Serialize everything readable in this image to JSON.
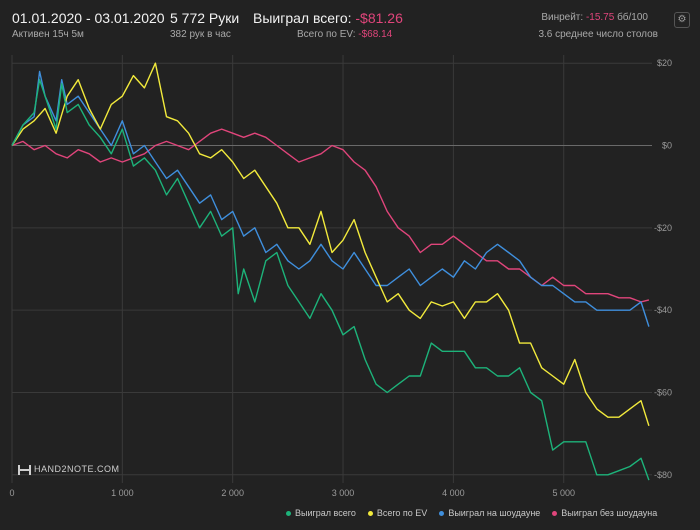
{
  "header": {
    "date_range": "01.01.2020 - 03.01.2020",
    "active": "Активен 15ч 5м",
    "hands": "5 772 Руки",
    "hands_per_hour": "382 рук в час",
    "won_label": "Выиграл всего: ",
    "won_value": "-$81.26",
    "ev_label": "Всего по EV: ",
    "ev_value": "-$68.14",
    "winrate_label": "Винрейт: ",
    "winrate_value": "-15.75",
    "winrate_unit": " бб/100",
    "avg_tables": "3.6 среднее число столов"
  },
  "logo": {
    "brand": "HAND2NOTE.COM"
  },
  "colors": {
    "background": "#222222",
    "grid": "#3a3a3a",
    "zero_line": "#6a6a6a",
    "accent_negative": "#e0457b",
    "total": "#1db37a",
    "ev": "#f2ea3c",
    "showdown": "#3f8fdd",
    "non_showdown": "#e0457b"
  },
  "chart_data": {
    "type": "line",
    "title": "",
    "xlabel": "",
    "ylabel": "",
    "xlim": [
      0,
      5800
    ],
    "ylim": [
      -82,
      22
    ],
    "x_ticks": [
      0,
      1000,
      2000,
      3000,
      4000,
      5000
    ],
    "x_tick_labels": [
      "0",
      "1 000",
      "2 000",
      "3 000",
      "4 000",
      "5 000"
    ],
    "y_ticks": [
      20,
      0,
      -20,
      -40,
      -60,
      -80
    ],
    "y_tick_labels": [
      "$20",
      "$0",
      "-$20",
      "-$40",
      "-$60",
      "-$80"
    ],
    "grid": true,
    "legend_position": "bottom-right",
    "series": [
      {
        "name": "Выиграл всего",
        "color": "#1db37a",
        "points": [
          [
            0,
            0
          ],
          [
            100,
            5
          ],
          [
            200,
            8
          ],
          [
            250,
            16
          ],
          [
            300,
            12
          ],
          [
            400,
            4
          ],
          [
            450,
            15
          ],
          [
            500,
            8
          ],
          [
            600,
            10
          ],
          [
            700,
            5
          ],
          [
            800,
            2
          ],
          [
            900,
            -2
          ],
          [
            1000,
            4
          ],
          [
            1100,
            -5
          ],
          [
            1200,
            -3
          ],
          [
            1300,
            -6
          ],
          [
            1400,
            -12
          ],
          [
            1500,
            -8
          ],
          [
            1600,
            -14
          ],
          [
            1700,
            -20
          ],
          [
            1800,
            -16
          ],
          [
            1900,
            -22
          ],
          [
            2000,
            -20
          ],
          [
            2050,
            -36
          ],
          [
            2100,
            -30
          ],
          [
            2200,
            -38
          ],
          [
            2300,
            -28
          ],
          [
            2400,
            -26
          ],
          [
            2500,
            -34
          ],
          [
            2600,
            -38
          ],
          [
            2700,
            -42
          ],
          [
            2800,
            -36
          ],
          [
            2900,
            -40
          ],
          [
            3000,
            -46
          ],
          [
            3100,
            -44
          ],
          [
            3200,
            -52
          ],
          [
            3300,
            -58
          ],
          [
            3400,
            -60
          ],
          [
            3500,
            -58
          ],
          [
            3600,
            -56
          ],
          [
            3700,
            -56
          ],
          [
            3800,
            -48
          ],
          [
            3900,
            -50
          ],
          [
            4000,
            -50
          ],
          [
            4100,
            -50
          ],
          [
            4200,
            -54
          ],
          [
            4300,
            -54
          ],
          [
            4400,
            -56
          ],
          [
            4500,
            -56
          ],
          [
            4600,
            -54
          ],
          [
            4700,
            -60
          ],
          [
            4800,
            -62
          ],
          [
            4900,
            -74
          ],
          [
            5000,
            -72
          ],
          [
            5100,
            -72
          ],
          [
            5200,
            -72
          ],
          [
            5300,
            -80
          ],
          [
            5400,
            -80
          ],
          [
            5500,
            -79
          ],
          [
            5600,
            -78
          ],
          [
            5700,
            -76
          ],
          [
            5772,
            -81.3
          ]
        ]
      },
      {
        "name": "Всего по EV",
        "color": "#f2ea3c",
        "points": [
          [
            0,
            0
          ],
          [
            100,
            4
          ],
          [
            200,
            6
          ],
          [
            300,
            9
          ],
          [
            400,
            3
          ],
          [
            500,
            12
          ],
          [
            600,
            16
          ],
          [
            700,
            9
          ],
          [
            800,
            4
          ],
          [
            900,
            10
          ],
          [
            1000,
            12
          ],
          [
            1100,
            17
          ],
          [
            1200,
            14
          ],
          [
            1300,
            20
          ],
          [
            1400,
            7
          ],
          [
            1500,
            6
          ],
          [
            1600,
            3
          ],
          [
            1700,
            -2
          ],
          [
            1800,
            -3
          ],
          [
            1900,
            -1
          ],
          [
            2000,
            -4
          ],
          [
            2100,
            -8
          ],
          [
            2200,
            -6
          ],
          [
            2300,
            -10
          ],
          [
            2400,
            -14
          ],
          [
            2500,
            -20
          ],
          [
            2600,
            -20
          ],
          [
            2700,
            -24
          ],
          [
            2800,
            -16
          ],
          [
            2900,
            -26
          ],
          [
            3000,
            -23
          ],
          [
            3100,
            -18
          ],
          [
            3200,
            -26
          ],
          [
            3300,
            -32
          ],
          [
            3400,
            -38
          ],
          [
            3500,
            -36
          ],
          [
            3600,
            -40
          ],
          [
            3700,
            -42
          ],
          [
            3800,
            -38
          ],
          [
            3900,
            -39
          ],
          [
            4000,
            -38
          ],
          [
            4100,
            -42
          ],
          [
            4200,
            -38
          ],
          [
            4300,
            -38
          ],
          [
            4400,
            -36
          ],
          [
            4500,
            -40
          ],
          [
            4600,
            -48
          ],
          [
            4700,
            -48
          ],
          [
            4800,
            -54
          ],
          [
            4900,
            -56
          ],
          [
            5000,
            -58
          ],
          [
            5100,
            -52
          ],
          [
            5200,
            -60
          ],
          [
            5300,
            -64
          ],
          [
            5400,
            -66
          ],
          [
            5500,
            -66
          ],
          [
            5600,
            -64
          ],
          [
            5700,
            -62
          ],
          [
            5772,
            -68.1
          ]
        ]
      },
      {
        "name": "Выиграл на шоудауне",
        "color": "#3f8fdd",
        "points": [
          [
            0,
            0
          ],
          [
            100,
            5
          ],
          [
            200,
            7
          ],
          [
            250,
            18
          ],
          [
            300,
            12
          ],
          [
            400,
            6
          ],
          [
            450,
            16
          ],
          [
            500,
            10
          ],
          [
            600,
            12
          ],
          [
            700,
            8
          ],
          [
            800,
            4
          ],
          [
            900,
            0
          ],
          [
            1000,
            6
          ],
          [
            1100,
            -2
          ],
          [
            1200,
            0
          ],
          [
            1300,
            -4
          ],
          [
            1400,
            -8
          ],
          [
            1500,
            -6
          ],
          [
            1600,
            -10
          ],
          [
            1700,
            -14
          ],
          [
            1800,
            -12
          ],
          [
            1900,
            -18
          ],
          [
            2000,
            -16
          ],
          [
            2100,
            -22
          ],
          [
            2200,
            -20
          ],
          [
            2300,
            -26
          ],
          [
            2400,
            -24
          ],
          [
            2500,
            -28
          ],
          [
            2600,
            -30
          ],
          [
            2700,
            -28
          ],
          [
            2800,
            -24
          ],
          [
            2900,
            -28
          ],
          [
            3000,
            -30
          ],
          [
            3100,
            -26
          ],
          [
            3200,
            -30
          ],
          [
            3300,
            -34
          ],
          [
            3400,
            -34
          ],
          [
            3500,
            -32
          ],
          [
            3600,
            -30
          ],
          [
            3700,
            -34
          ],
          [
            3800,
            -32
          ],
          [
            3900,
            -30
          ],
          [
            4000,
            -32
          ],
          [
            4100,
            -28
          ],
          [
            4200,
            -30
          ],
          [
            4300,
            -26
          ],
          [
            4400,
            -24
          ],
          [
            4500,
            -26
          ],
          [
            4600,
            -28
          ],
          [
            4700,
            -32
          ],
          [
            4800,
            -34
          ],
          [
            4900,
            -34
          ],
          [
            5000,
            -36
          ],
          [
            5100,
            -38
          ],
          [
            5200,
            -38
          ],
          [
            5300,
            -40
          ],
          [
            5400,
            -40
          ],
          [
            5500,
            -40
          ],
          [
            5600,
            -40
          ],
          [
            5700,
            -38
          ],
          [
            5772,
            -44
          ]
        ]
      },
      {
        "name": "Выиграл без шоудауна",
        "color": "#e0457b",
        "points": [
          [
            0,
            0
          ],
          [
            100,
            1
          ],
          [
            200,
            -1
          ],
          [
            300,
            0
          ],
          [
            400,
            -2
          ],
          [
            500,
            -3
          ],
          [
            600,
            -1
          ],
          [
            700,
            -2
          ],
          [
            800,
            -4
          ],
          [
            900,
            -3
          ],
          [
            1000,
            -4
          ],
          [
            1100,
            -3
          ],
          [
            1200,
            -2
          ],
          [
            1300,
            0
          ],
          [
            1400,
            1
          ],
          [
            1500,
            0
          ],
          [
            1600,
            -1
          ],
          [
            1700,
            1
          ],
          [
            1800,
            3
          ],
          [
            1900,
            4
          ],
          [
            2000,
            3
          ],
          [
            2100,
            2
          ],
          [
            2200,
            3
          ],
          [
            2300,
            2
          ],
          [
            2400,
            0
          ],
          [
            2500,
            -2
          ],
          [
            2600,
            -4
          ],
          [
            2700,
            -3
          ],
          [
            2800,
            -2
          ],
          [
            2900,
            0
          ],
          [
            3000,
            -1
          ],
          [
            3100,
            -4
          ],
          [
            3200,
            -6
          ],
          [
            3300,
            -10
          ],
          [
            3400,
            -16
          ],
          [
            3500,
            -20
          ],
          [
            3600,
            -22
          ],
          [
            3700,
            -26
          ],
          [
            3800,
            -24
          ],
          [
            3900,
            -24
          ],
          [
            4000,
            -22
          ],
          [
            4100,
            -24
          ],
          [
            4200,
            -26
          ],
          [
            4300,
            -28
          ],
          [
            4400,
            -28
          ],
          [
            4500,
            -30
          ],
          [
            4600,
            -30
          ],
          [
            4700,
            -32
          ],
          [
            4800,
            -34
          ],
          [
            4900,
            -32
          ],
          [
            5000,
            -34
          ],
          [
            5100,
            -34
          ],
          [
            5200,
            -36
          ],
          [
            5300,
            -36
          ],
          [
            5400,
            -36
          ],
          [
            5500,
            -37
          ],
          [
            5600,
            -37
          ],
          [
            5700,
            -38
          ],
          [
            5772,
            -37.5
          ]
        ]
      }
    ]
  }
}
